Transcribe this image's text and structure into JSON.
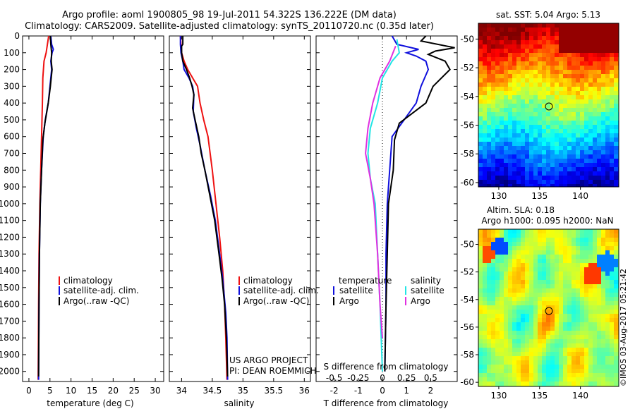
{
  "header": {
    "line1": "Argo profile: aoml 1900805_98 19-Jul-2011 54.322S 136.222E (DM data)",
    "line2": "Climatology: CARS2009. Satellite-adjusted climatology: synTS_20110720.nc (0.35d later)"
  },
  "colors": {
    "climatology": "#ee1111",
    "satellite": "#1010dd",
    "argo": "#000000",
    "satellite_s": "#22e5e5",
    "argo_s": "#e030e0"
  },
  "chart_data": [
    {
      "id": "temperature",
      "type": "line",
      "xlabel": "temperature (deg C)",
      "ylabel": "",
      "xlim": [
        -1.5,
        32
      ],
      "ylim": [
        2060,
        0
      ],
      "xticks": [
        0,
        5,
        10,
        15,
        20,
        25,
        30
      ],
      "yticks": [
        0,
        100,
        200,
        300,
        400,
        500,
        600,
        700,
        800,
        900,
        1000,
        1100,
        1200,
        1300,
        1400,
        1500,
        1600,
        1700,
        1800,
        1900,
        2000
      ],
      "legend": [
        "climatology",
        "satellite-adj. clim.",
        "Argo(..raw -QC)"
      ],
      "series": [
        {
          "name": "climatology",
          "points": [
            [
              4.7,
              0
            ],
            [
              4.4,
              50
            ],
            [
              4.1,
              100
            ],
            [
              3.6,
              150
            ],
            [
              3.3,
              250
            ],
            [
              3.2,
              400
            ],
            [
              3.0,
              600
            ],
            [
              2.8,
              800
            ],
            [
              2.6,
              1000
            ],
            [
              2.4,
              1300
            ],
            [
              2.3,
              1600
            ],
            [
              2.2,
              2050
            ]
          ]
        },
        {
          "name": "satellite-adj. clim.",
          "points": [
            [
              5.2,
              0
            ],
            [
              5.4,
              50
            ],
            [
              5.8,
              80
            ],
            [
              5.5,
              100
            ],
            [
              5.2,
              150
            ],
            [
              5.4,
              200
            ],
            [
              5.0,
              300
            ],
            [
              4.6,
              400
            ],
            [
              3.9,
              500
            ],
            [
              3.4,
              600
            ],
            [
              3.0,
              800
            ],
            [
              2.7,
              1000
            ],
            [
              2.5,
              1300
            ],
            [
              2.4,
              1600
            ],
            [
              2.3,
              2050
            ]
          ]
        },
        {
          "name": "Argo(..raw -QC)",
          "points": [
            [
              5.1,
              0
            ],
            [
              5.2,
              50
            ],
            [
              5.4,
              100
            ],
            [
              5.3,
              150
            ],
            [
              5.5,
              200
            ],
            [
              5.1,
              300
            ],
            [
              4.6,
              400
            ],
            [
              3.8,
              520
            ],
            [
              3.3,
              620
            ],
            [
              3.0,
              800
            ],
            [
              2.7,
              1000
            ],
            [
              2.5,
              1300
            ],
            [
              2.4,
              1600
            ],
            [
              2.3,
              2030
            ]
          ]
        }
      ]
    },
    {
      "id": "salinity",
      "type": "line",
      "xlabel": "salinity",
      "xlim": [
        33.8,
        36.1
      ],
      "ylim": [
        2060,
        0
      ],
      "xticks": [
        34,
        34.5,
        35,
        35.5,
        36
      ],
      "legend": [
        "climatology",
        "satellite-adj. clim.",
        "Argo(..raw -QC)"
      ],
      "annotation": [
        "US ARGO PROJECT",
        "PI: DEAN ROEMMICH"
      ],
      "series": [
        {
          "name": "climatology",
          "points": [
            [
              33.98,
              0
            ],
            [
              33.99,
              50
            ],
            [
              34.0,
              100
            ],
            [
              34.04,
              150
            ],
            [
              34.1,
              200
            ],
            [
              34.18,
              250
            ],
            [
              34.26,
              300
            ],
            [
              34.3,
              400
            ],
            [
              34.36,
              500
            ],
            [
              34.43,
              600
            ],
            [
              34.5,
              800
            ],
            [
              34.56,
              1000
            ],
            [
              34.62,
              1200
            ],
            [
              34.67,
              1400
            ],
            [
              34.7,
              1600
            ],
            [
              34.72,
              1800
            ],
            [
              34.74,
              2050
            ]
          ]
        },
        {
          "name": "satellite-adj. clim.",
          "points": [
            [
              33.98,
              0
            ],
            [
              33.98,
              50
            ],
            [
              33.99,
              100
            ],
            [
              34.02,
              150
            ],
            [
              34.04,
              200
            ],
            [
              34.12,
              250
            ],
            [
              34.18,
              300
            ],
            [
              34.2,
              350
            ],
            [
              34.19,
              450
            ],
            [
              34.24,
              550
            ],
            [
              34.3,
              650
            ],
            [
              34.38,
              800
            ],
            [
              34.47,
              950
            ],
            [
              34.55,
              1100
            ],
            [
              34.62,
              1300
            ],
            [
              34.67,
              1450
            ],
            [
              34.72,
              1650
            ],
            [
              34.74,
              1800
            ],
            [
              34.75,
              2050
            ]
          ]
        },
        {
          "name": "Argo(..raw -QC)",
          "points": [
            [
              34.02,
              0
            ],
            [
              34.02,
              50
            ],
            [
              34.0,
              60
            ],
            [
              34.0,
              100
            ],
            [
              34.02,
              150
            ],
            [
              34.08,
              200
            ],
            [
              34.13,
              250
            ],
            [
              34.17,
              300
            ],
            [
              34.2,
              350
            ],
            [
              34.18,
              430
            ],
            [
              34.22,
              500
            ],
            [
              34.28,
              600
            ],
            [
              34.32,
              700
            ],
            [
              34.38,
              800
            ],
            [
              34.46,
              950
            ],
            [
              34.54,
              1100
            ],
            [
              34.61,
              1300
            ],
            [
              34.66,
              1450
            ],
            [
              34.7,
              1600
            ],
            [
              34.73,
              1800
            ],
            [
              34.75,
              2030
            ]
          ]
        }
      ]
    },
    {
      "id": "difference",
      "type": "line",
      "xlabel": "T difference from climatology",
      "xlabel_top": "S difference from climatology",
      "xlim": [
        -2.75,
        3.1
      ],
      "ylim": [
        2060,
        0
      ],
      "xticks_t": [
        -2,
        -1,
        0,
        1,
        2
      ],
      "xticks_s": [
        -0.5,
        -0.25,
        0,
        0.25,
        0.5
      ],
      "legend_left_title": "temperature",
      "legend_right_title": "salinity",
      "legend": [
        "satellite",
        "Argo",
        "satellite",
        "Argo"
      ],
      "series": [
        {
          "name": "satellite",
          "points": [
            [
              0.4,
              0
            ],
            [
              0.6,
              50
            ],
            [
              1.5,
              80
            ],
            [
              1.0,
              100
            ],
            [
              1.4,
              120
            ],
            [
              1.8,
              150
            ],
            [
              1.9,
              200
            ],
            [
              1.6,
              300
            ],
            [
              1.4,
              400
            ],
            [
              0.9,
              500
            ],
            [
              0.4,
              600
            ],
            [
              0.3,
              800
            ],
            [
              0.2,
              1000
            ],
            [
              0.15,
              1300
            ],
            [
              0.15,
              1600
            ],
            [
              0.1,
              2000
            ]
          ]
        },
        {
          "name": "Argo",
          "points": [
            [
              1.8,
              0
            ],
            [
              1.6,
              30
            ],
            [
              3.0,
              70
            ],
            [
              2.2,
              90
            ],
            [
              1.9,
              110
            ],
            [
              2.6,
              150
            ],
            [
              2.8,
              200
            ],
            [
              2.1,
              300
            ],
            [
              1.8,
              400
            ],
            [
              0.7,
              520
            ],
            [
              0.5,
              620
            ],
            [
              0.45,
              800
            ],
            [
              0.25,
              1000
            ],
            [
              0.2,
              1300
            ],
            [
              0.15,
              1600
            ],
            [
              0.1,
              2000
            ]
          ]
        },
        {
          "name": "satellite",
          "points": [
            [
              0.6,
              20
            ],
            [
              0.7,
              100
            ],
            [
              0.4,
              150
            ],
            [
              0.0,
              250
            ],
            [
              -0.2,
              400
            ],
            [
              -0.5,
              550
            ],
            [
              -0.6,
              700
            ],
            [
              -0.5,
              850
            ],
            [
              -0.3,
              1000
            ],
            [
              -0.2,
              1300
            ],
            [
              -0.1,
              1600
            ],
            [
              -0.05,
              1800
            ],
            [
              0.0,
              2000
            ]
          ]
        },
        {
          "name": "Argo",
          "points": [
            [
              0.55,
              60
            ],
            [
              0.3,
              150
            ],
            [
              -0.1,
              250
            ],
            [
              -0.4,
              400
            ],
            [
              -0.6,
              550
            ],
            [
              -0.7,
              700
            ],
            [
              -0.5,
              850
            ],
            [
              -0.35,
              1000
            ],
            [
              -0.2,
              1300
            ],
            [
              -0.1,
              1600
            ],
            [
              0.0,
              1800
            ]
          ]
        }
      ]
    }
  ],
  "maps": {
    "sst_title": "sat. SST: 5.04  Argo: 5.13",
    "sla_title_1": "Altim. SLA: 0.18",
    "sla_title_2": "Argo h1000: 0.095 h2000: NaN",
    "lat_ticks": [
      "-50",
      "-52",
      "-54",
      "-56",
      "-58",
      "-60"
    ],
    "lon_ticks": [
      "130",
      "135",
      "140"
    ]
  },
  "credit": "©IMOS 03-Aug-2017 05:21:42"
}
